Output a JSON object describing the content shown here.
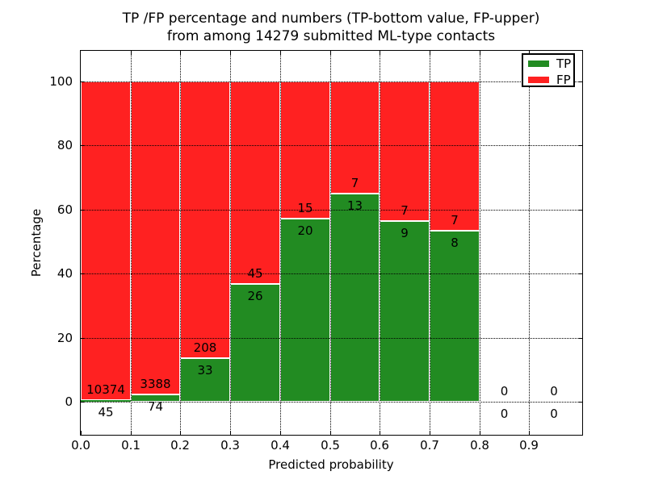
{
  "title": {
    "line1": "TP /FP percentage and numbers (TP-bottom value, FP-upper)",
    "line2": "from among 14279 submitted ML-type contacts"
  },
  "axes": {
    "xlabel": "Predicted probability",
    "ylabel": "Percentage",
    "ytick_labels": [
      "0",
      "20",
      "40",
      "60",
      "80",
      "100"
    ],
    "ytick_values": [
      0,
      20,
      40,
      60,
      80,
      100
    ],
    "xtick_labels": [
      "0.0",
      "0.1",
      "0.2",
      "0.3",
      "0.4",
      "0.5",
      "0.6",
      "0.7",
      "0.8",
      "0.9"
    ],
    "grid_style": "dotted"
  },
  "legend": {
    "items": [
      {
        "label": "TP",
        "color": "#228b22",
        "swatch": "tp-color-swatch"
      },
      {
        "label": "FP",
        "color": "#ff2121",
        "swatch": "fp-color-swatch"
      }
    ],
    "position": "upper-right"
  },
  "colors": {
    "tp": "#228b22",
    "fp": "#ff2121",
    "bar_edge": "#ffffff",
    "grid": "#000000"
  },
  "chart_data": {
    "type": "bar",
    "stacked": true,
    "title": "TP /FP percentage and numbers (TP-bottom value, FP-upper) from among 14279 submitted ML-type contacts",
    "xlabel": "Predicted probability",
    "ylabel": "Percentage",
    "total_contacts": 14279,
    "bin_starts": [
      0.0,
      0.1,
      0.2,
      0.3,
      0.4,
      0.5,
      0.6,
      0.7,
      0.8,
      0.9
    ],
    "bin_width": 0.1,
    "series": [
      {
        "name": "TP",
        "color": "#228b22",
        "counts": [
          45,
          74,
          33,
          26,
          20,
          13,
          9,
          8,
          0,
          0
        ],
        "pct": [
          0.43,
          2.14,
          13.69,
          36.62,
          57.14,
          65.0,
          56.25,
          53.33,
          0,
          0
        ]
      },
      {
        "name": "FP",
        "color": "#ff2121",
        "counts": [
          10374,
          3388,
          208,
          45,
          15,
          7,
          7,
          7,
          0,
          0
        ],
        "pct": [
          99.57,
          97.86,
          86.31,
          63.38,
          42.86,
          35.0,
          43.75,
          46.67,
          0,
          0
        ]
      }
    ],
    "label_rule": "TP count below segment top, FP count above segment top; zero bins show 0/0 at baseline",
    "xlim": [
      0.0,
      1.007
    ],
    "ylim": [
      -10.6,
      109.7
    ],
    "grid": "on",
    "legend_position": "upper right"
  }
}
